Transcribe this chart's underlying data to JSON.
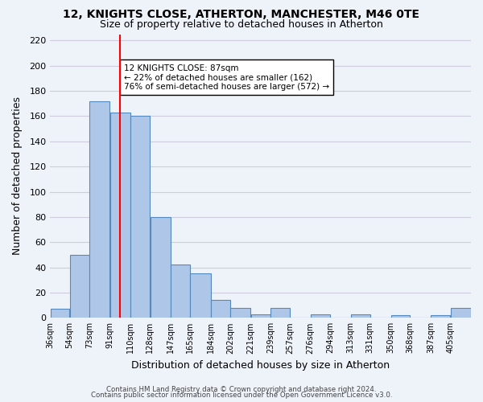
{
  "title": "12, KNIGHTS CLOSE, ATHERTON, MANCHESTER, M46 0TE",
  "subtitle": "Size of property relative to detached houses in Atherton",
  "xlabel": "Distribution of detached houses by size in Atherton",
  "ylabel": "Number of detached properties",
  "bin_labels": [
    "36sqm",
    "54sqm",
    "73sqm",
    "91sqm",
    "110sqm",
    "128sqm",
    "147sqm",
    "165sqm",
    "184sqm",
    "202sqm",
    "221sqm",
    "239sqm",
    "257sqm",
    "276sqm",
    "294sqm",
    "313sqm",
    "331sqm",
    "350sqm",
    "368sqm",
    "387sqm",
    "405sqm"
  ],
  "bar_values": [
    7,
    50,
    172,
    163,
    160,
    80,
    42,
    35,
    14,
    8,
    3,
    8,
    0,
    3,
    0,
    3,
    0,
    2,
    0,
    2,
    8
  ],
  "bar_color": "#aec6e8",
  "bar_edgecolor": "#5588bb",
  "vline_x": 91,
  "vline_color": "red",
  "annotation_line1": "12 KNIGHTS CLOSE: 87sqm",
  "annotation_line2": "← 22% of detached houses are smaller (162)",
  "annotation_line3": "76% of semi-detached houses are larger (572) →",
  "ylim": [
    0,
    225
  ],
  "yticks": [
    0,
    20,
    40,
    60,
    80,
    100,
    120,
    140,
    160,
    180,
    200,
    220
  ],
  "footer_line1": "Contains HM Land Registry data © Crown copyright and database right 2024.",
  "footer_line2": "Contains public sector information licensed under the Open Government Licence v3.0.",
  "background_color": "#eef3f9",
  "grid_color": "#ccccdd",
  "bin_edges": [
    27,
    45,
    63,
    82,
    101,
    119,
    138,
    156,
    175,
    193,
    212,
    230,
    248,
    267,
    285,
    304,
    322,
    341,
    359,
    378,
    396,
    415
  ]
}
